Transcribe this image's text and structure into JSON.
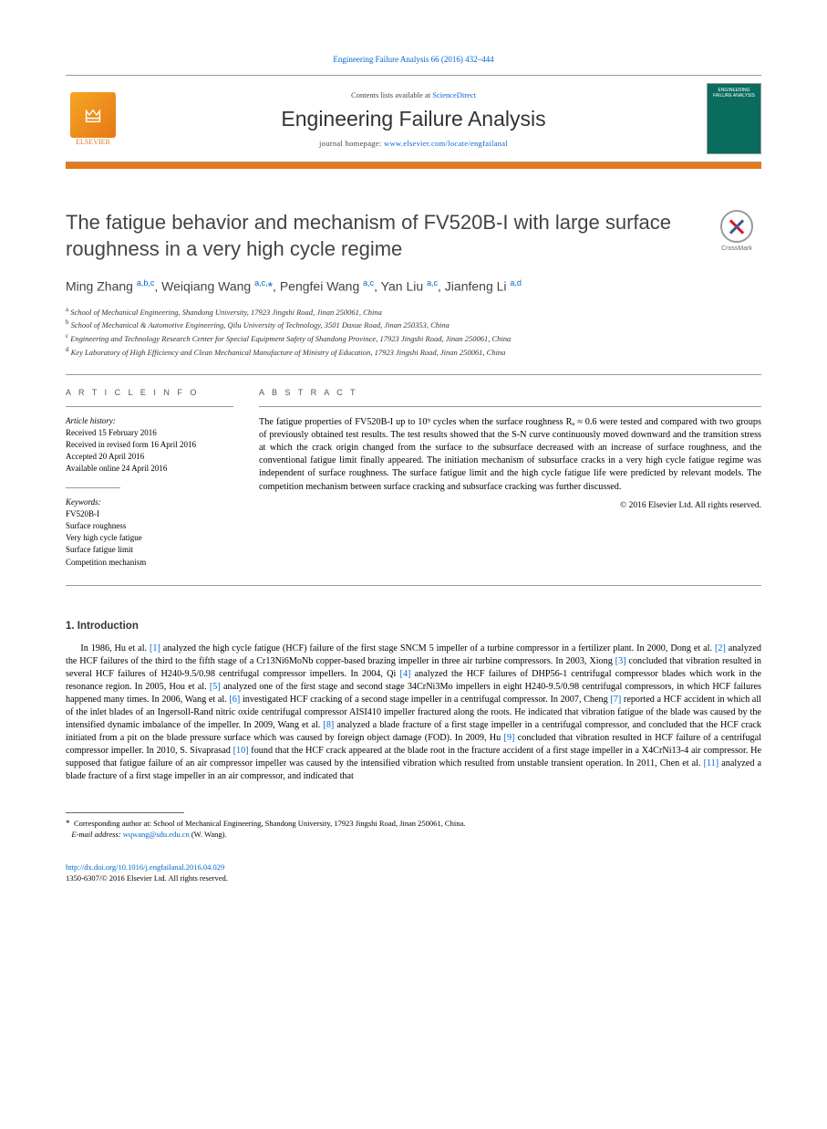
{
  "citation": "Engineering Failure Analysis 66 (2016) 432–444",
  "masthead": {
    "contents_prefix": "Contents lists available at ",
    "contents_link": "ScienceDirect",
    "journal": "Engineering Failure Analysis",
    "homepage_prefix": "journal homepage: ",
    "homepage_url": "www.elsevier.com/locate/engfailanal",
    "publisher": "ELSEVIER",
    "cover_title": "ENGINEERING FAILURE ANALYSIS"
  },
  "colors": {
    "brand_bar": "#e67817",
    "link": "#0066cc",
    "cover_bg": "#0a6b5f"
  },
  "title": "The fatigue behavior and mechanism of FV520B-I with large surface roughness in a very high cycle regime",
  "crossmark_label": "CrossMark",
  "authors_html": "Ming Zhang <sup>a,b,c</sup>, Weiqiang Wang <sup>a,c,</sup><span class='star'>*</span>, Pengfei Wang <sup>a,c</sup>, Yan Liu <sup>a,c</sup>, Jianfeng Li <sup>a,d</sup>",
  "affiliations": [
    {
      "tag": "a",
      "text": "School of Mechanical Engineering, Shandong University, 17923 Jingshi Road, Jinan 250061, China"
    },
    {
      "tag": "b",
      "text": "School of Mechanical & Automotive Engineering, Qilu University of Technology, 3501 Daxue Road, Jinan 250353, China"
    },
    {
      "tag": "c",
      "text": "Engineering and Technology Research Center for Special Equipment Safety of Shandong Province, 17923 Jingshi Road, Jinan 250061, China"
    },
    {
      "tag": "d",
      "text": "Key Laboratory of High Efficiency and Clean Mechanical Manufacture of Ministry of Education, 17923 Jingshi Road, Jinan 250061, China"
    }
  ],
  "article_info": {
    "heading": "A R T I C L E   I N F O",
    "history_label": "Article history:",
    "history": [
      "Received 15 February 2016",
      "Received in revised form 16 April 2016",
      "Accepted 20 April 2016",
      "Available online 24 April 2016"
    ],
    "keywords_label": "Keywords:",
    "keywords": [
      "FV520B-I",
      "Surface roughness",
      "Very high cycle fatigue",
      "Surface fatigue limit",
      "Competition mechanism"
    ]
  },
  "abstract": {
    "heading": "A B S T R A C T",
    "text": "The fatigue properties of FV520B-I up to 10⁹ cycles when the surface roughness Rₐ ≈ 0.6 were tested and compared with two groups of previously obtained test results. The test results showed that the S-N curve continuously moved downward and the transition stress at which the crack origin changed from the surface to the subsurface decreased with an increase of surface roughness, and the conventional fatigue limit finally appeared. The initiation mechanism of subsurface cracks in a very high cycle fatigue regime was independent of surface roughness. The surface fatigue limit and the high cycle fatigue life were predicted by relevant models. The competition mechanism between surface cracking and subsurface cracking was further discussed.",
    "copyright": "© 2016 Elsevier Ltd. All rights reserved."
  },
  "intro": {
    "heading": "1. Introduction",
    "para1_parts": [
      "In 1986, Hu et al. ",
      "[1]",
      " analyzed the high cycle fatigue (HCF) failure of the first stage SNCM 5 impeller of a turbine compressor in a fertilizer plant. In 2000, Dong et al. ",
      "[2]",
      " analyzed the HCF failures of the third to the fifth stage of a Cr13Ni6MoNb copper-based brazing impeller in three air turbine compressors. In 2003, Xiong ",
      "[3]",
      " concluded that vibration resulted in several HCF failures of H240-9.5/0.98 centrifugal compressor impellers. In 2004, Qi ",
      "[4]",
      " analyzed the HCF failures of DHP56-1 centrifugal compressor blades which work in the resonance region. In 2005, Hou et al. ",
      "[5]",
      " analyzed one of the first stage and second stage 34CrNi3Mo impellers in eight H240-9.5/0.98 centrifugal compressors, in which HCF failures happened many times. In 2006, Wang et al. ",
      "[6]",
      " investigated HCF cracking of a second stage impeller in a centrifugal compressor. In 2007, Cheng ",
      "[7]",
      " reported a HCF accident in which all of the inlet blades of an Ingersoll-Rand nitric oxide centrifugal compressor AISI410 impeller fractured along the roots. He indicated that vibration fatigue of the blade was caused by the intensified dynamic imbalance of the impeller. In 2009, Wang et al. ",
      "[8]",
      " analyzed a blade fracture of a first stage impeller in a centrifugal compressor, and concluded that the HCF crack initiated from a pit on the blade pressure surface which was caused by foreign object damage (FOD). In 2009, Hu ",
      "[9]",
      " concluded that vibration resulted in HCF failure of a centrifugal compressor impeller. In 2010, S. Sivaprasad ",
      "[10]",
      " found that the HCF crack appeared at the blade root in the fracture accident of a first stage impeller in a X4CrNi13-4 air compressor. He supposed that fatigue failure of an air compressor impeller was caused by the intensified vibration which resulted from unstable transient operation. In 2011, Chen et al. ",
      "[11]",
      " analyzed a blade fracture of a first stage impeller in an air compressor, and indicated that"
    ]
  },
  "footnote": {
    "corr": "Corresponding author at: School of Mechanical Engineering, Shandong University, 17923 Jingshi Road, Jinan 250061, China.",
    "email_label": "E-mail address: ",
    "email": "wqwang@sdu.edu.cn",
    "email_suffix": " (W. Wang)."
  },
  "doi": {
    "url": "http://dx.doi.org/10.1016/j.engfailanal.2016.04.029",
    "issn_line": "1350-6307/© 2016 Elsevier Ltd. All rights reserved."
  }
}
